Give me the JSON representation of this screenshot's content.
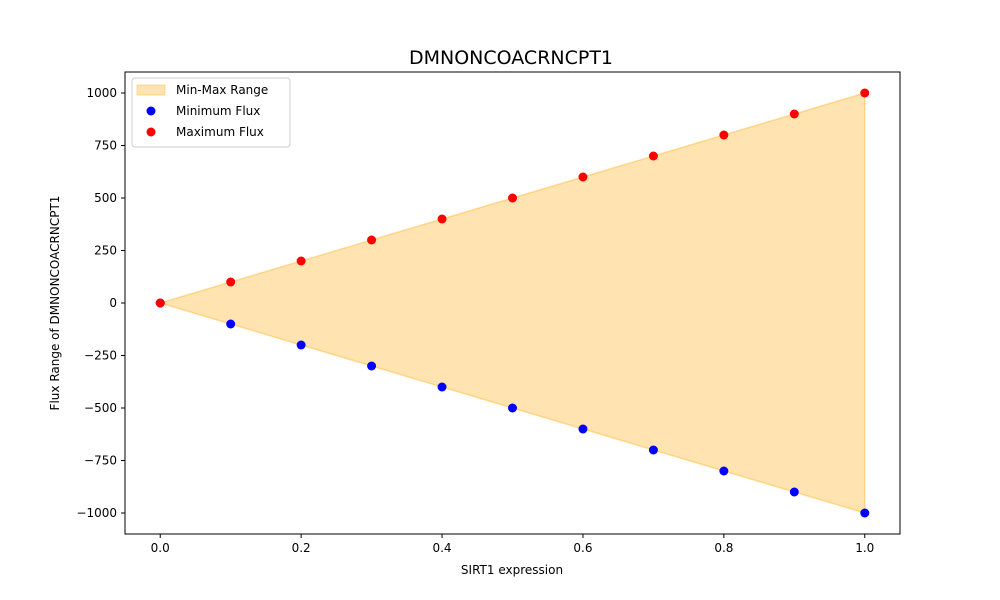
{
  "chart_data": {
    "type": "scatter",
    "title": "DMNONCOACRNCPT1",
    "xlabel": "SIRT1 expression",
    "ylabel": "Flux Range of DMNONCOACRNCPT1",
    "xlim": [
      -0.05,
      1.05
    ],
    "ylim": [
      -1100,
      1100
    ],
    "xticks": [
      0.0,
      0.2,
      0.4,
      0.6,
      0.8,
      1.0
    ],
    "xtick_labels": [
      "0.0",
      "0.2",
      "0.4",
      "0.6",
      "0.8",
      "1.0"
    ],
    "yticks": [
      -1000,
      -750,
      -500,
      -250,
      0,
      250,
      500,
      750,
      1000
    ],
    "ytick_labels": [
      "−1000",
      "−750",
      "−500",
      "−250",
      "0",
      "250",
      "500",
      "750",
      "1000"
    ],
    "x": [
      0.0,
      0.1,
      0.2,
      0.3,
      0.4,
      0.5,
      0.6,
      0.7,
      0.8,
      0.9,
      1.0
    ],
    "series": [
      {
        "name": "Minimum Flux",
        "color": "#0000ff",
        "values": [
          0,
          -100,
          -200,
          -300,
          -400,
          -500,
          -600,
          -700,
          -800,
          -900,
          -1000
        ]
      },
      {
        "name": "Maximum Flux",
        "color": "#ff0000",
        "values": [
          0,
          100,
          200,
          300,
          400,
          500,
          600,
          700,
          800,
          900,
          1000
        ]
      }
    ],
    "fill": {
      "name": "Min-Max Range",
      "color": "#ffa500",
      "opacity": 0.3
    },
    "legend": {
      "position": "top-left",
      "entries": [
        "Min-Max Range",
        "Minimum Flux",
        "Maximum Flux"
      ]
    },
    "grid": false
  }
}
